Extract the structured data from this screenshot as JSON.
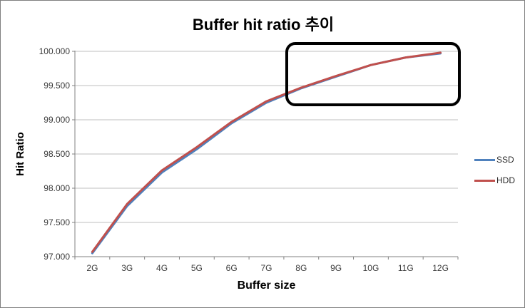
{
  "chart_data": {
    "type": "line",
    "title": "Buffer hit ratio 추이",
    "xlabel": "Buffer size",
    "ylabel": "Hit Ratio",
    "categories": [
      "2G",
      "3G",
      "4G",
      "5G",
      "6G",
      "7G",
      "8G",
      "9G",
      "10G",
      "11G",
      "12G"
    ],
    "series": [
      {
        "name": "SSD",
        "color": "#4F81BD",
        "values": [
          97.05,
          97.74,
          98.23,
          98.57,
          98.95,
          99.25,
          99.46,
          99.63,
          99.8,
          99.91,
          99.97
        ]
      },
      {
        "name": "HDD",
        "color": "#C0504D",
        "values": [
          97.07,
          97.77,
          98.26,
          98.6,
          98.97,
          99.27,
          99.47,
          99.64,
          99.8,
          99.91,
          99.98
        ]
      }
    ],
    "ylim": [
      97.0,
      100.0
    ],
    "yticks": [
      {
        "value": 97.0,
        "label": "97.000"
      },
      {
        "value": 97.5,
        "label": "97.500"
      },
      {
        "value": 98.0,
        "label": "98.000"
      },
      {
        "value": 98.5,
        "label": "98.500"
      },
      {
        "value": 99.0,
        "label": "99.000"
      },
      {
        "value": 99.5,
        "label": "99.500"
      },
      {
        "value": 100.0,
        "label": "100.000"
      }
    ],
    "grid": true,
    "legend_position": "right",
    "annotation": {
      "type": "highlight-box",
      "x_range": [
        "8G",
        "12G"
      ],
      "y_range": [
        99.3,
        100.0
      ]
    },
    "colors": {
      "gridline": "#BFBFBF",
      "axis": "#808080",
      "tick_text": "#3a3a3a",
      "title_text": "#000000",
      "frame_border": "#7f7f7f"
    }
  }
}
